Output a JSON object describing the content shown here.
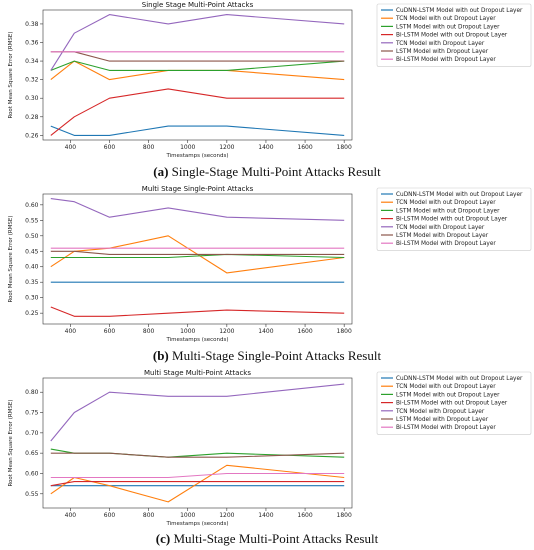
{
  "figure": {
    "captions": [
      {
        "letter": "(a)",
        "text": " Single-Stage Multi-Point Attacks Result"
      },
      {
        "letter": "(b)",
        "text": " Multi-Stage Single-Point Attacks Result"
      },
      {
        "letter": "(c)",
        "text": " Multi-Stage Multi-Point Attacks Result"
      }
    ]
  },
  "legend_labels": [
    "CuDNN-LSTM Model with out Dropout Layer",
    "TCN Model with out Dropout Layer",
    "LSTM Model with out Dropout Layer",
    "Bi-LSTM Model with out Dropout Layer",
    "TCN Model with Dropout Layer",
    "LSTM Model with Dropout Layer",
    "Bi-LSTM Model with Dropout Layer"
  ],
  "colors": [
    "#1f77b4",
    "#ff7f0e",
    "#2ca02c",
    "#d62728",
    "#9467bd",
    "#8c564b",
    "#e377c2"
  ],
  "chart_data": [
    {
      "type": "line",
      "title": "Single Stage Multi-Point Attacks",
      "xlabel": "Timestamps (seconds)",
      "ylabel": "Root Mean Square Error (RMSE)",
      "xlim": [
        260,
        1840
      ],
      "ylim": [
        0.255,
        0.395
      ],
      "xticks": [
        400,
        600,
        800,
        1000,
        1200,
        1400,
        1600,
        1800
      ],
      "yticks": [
        0.26,
        0.28,
        0.3,
        0.32,
        0.34,
        0.36,
        0.38
      ],
      "x": [
        300,
        420,
        600,
        900,
        1200,
        1800
      ],
      "series": [
        {
          "name": "CuDNN-LSTM Model with out Dropout Layer",
          "values": [
            0.27,
            0.26,
            0.26,
            0.27,
            0.27,
            0.26
          ]
        },
        {
          "name": "TCN Model with out Dropout Layer",
          "values": [
            0.32,
            0.34,
            0.32,
            0.33,
            0.33,
            0.32
          ]
        },
        {
          "name": "LSTM Model with out Dropout Layer",
          "values": [
            0.33,
            0.34,
            0.33,
            0.33,
            0.33,
            0.34
          ]
        },
        {
          "name": "Bi-LSTM Model with out Dropout Layer",
          "values": [
            0.26,
            0.28,
            0.3,
            0.31,
            0.3,
            0.3
          ]
        },
        {
          "name": "TCN Model with Dropout Layer",
          "values": [
            0.33,
            0.37,
            0.39,
            0.38,
            0.39,
            0.38
          ]
        },
        {
          "name": "LSTM Model with Dropout Layer",
          "values": [
            0.35,
            0.35,
            0.34,
            0.34,
            0.34,
            0.34
          ]
        },
        {
          "name": "Bi-LSTM Model with Dropout Layer",
          "values": [
            0.35,
            0.35,
            0.35,
            0.35,
            0.35,
            0.35
          ]
        }
      ],
      "legend": "top-right, outside"
    },
    {
      "type": "line",
      "title": "Multi Stage Single-Point Attacks",
      "xlabel": "Timestamps (seconds)",
      "ylabel": "Root Mean Square Error (RMSE)",
      "xlim": [
        260,
        1840
      ],
      "ylim": [
        0.215,
        0.635
      ],
      "xticks": [
        400,
        600,
        800,
        1000,
        1200,
        1400,
        1600,
        1800
      ],
      "yticks": [
        0.25,
        0.3,
        0.35,
        0.4,
        0.45,
        0.5,
        0.55,
        0.6
      ],
      "x": [
        300,
        420,
        600,
        900,
        1200,
        1800
      ],
      "series": [
        {
          "name": "CuDNN-LSTM Model with out Dropout Layer",
          "values": [
            0.35,
            0.35,
            0.35,
            0.35,
            0.35,
            0.35
          ]
        },
        {
          "name": "TCN Model with out Dropout Layer",
          "values": [
            0.4,
            0.45,
            0.46,
            0.5,
            0.38,
            0.43
          ]
        },
        {
          "name": "LSTM Model with out Dropout Layer",
          "values": [
            0.43,
            0.43,
            0.43,
            0.43,
            0.44,
            0.43
          ]
        },
        {
          "name": "Bi-LSTM Model with out Dropout Layer",
          "values": [
            0.27,
            0.24,
            0.24,
            0.25,
            0.26,
            0.25
          ]
        },
        {
          "name": "TCN Model with Dropout Layer",
          "values": [
            0.62,
            0.61,
            0.56,
            0.59,
            0.56,
            0.55
          ]
        },
        {
          "name": "LSTM Model with Dropout Layer",
          "values": [
            0.45,
            0.45,
            0.44,
            0.44,
            0.44,
            0.44
          ]
        },
        {
          "name": "Bi-LSTM Model with Dropout Layer",
          "values": [
            0.46,
            0.46,
            0.46,
            0.46,
            0.46,
            0.46
          ]
        }
      ],
      "legend": "top-right, outside"
    },
    {
      "type": "line",
      "title": "Multi Stage Multi-Point Attacks",
      "xlabel": "Timestamps (seconds)",
      "ylabel": "Root Mean Square Error (RMSE)",
      "xlim": [
        260,
        1840
      ],
      "ylim": [
        0.515,
        0.835
      ],
      "xticks": [
        400,
        600,
        800,
        1000,
        1200,
        1400,
        1600,
        1800
      ],
      "yticks": [
        0.55,
        0.6,
        0.65,
        0.7,
        0.75,
        0.8
      ],
      "x": [
        300,
        420,
        600,
        900,
        1200,
        1800
      ],
      "series": [
        {
          "name": "CuDNN-LSTM Model with out Dropout Layer",
          "values": [
            0.57,
            0.57,
            0.57,
            0.57,
            0.57,
            0.57
          ]
        },
        {
          "name": "TCN Model with out Dropout Layer",
          "values": [
            0.55,
            0.59,
            0.57,
            0.53,
            0.62,
            0.59
          ]
        },
        {
          "name": "LSTM Model with out Dropout Layer",
          "values": [
            0.66,
            0.65,
            0.65,
            0.64,
            0.65,
            0.64
          ]
        },
        {
          "name": "Bi-LSTM Model with out Dropout Layer",
          "values": [
            0.57,
            0.58,
            0.58,
            0.58,
            0.58,
            0.58
          ]
        },
        {
          "name": "TCN Model with Dropout Layer",
          "values": [
            0.68,
            0.75,
            0.8,
            0.79,
            0.79,
            0.82
          ]
        },
        {
          "name": "LSTM Model with Dropout Layer",
          "values": [
            0.65,
            0.65,
            0.65,
            0.64,
            0.64,
            0.65
          ]
        },
        {
          "name": "Bi-LSTM Model with Dropout Layer",
          "values": [
            0.59,
            0.59,
            0.59,
            0.59,
            0.6,
            0.6
          ]
        }
      ],
      "legend": "top-right, outside"
    }
  ]
}
